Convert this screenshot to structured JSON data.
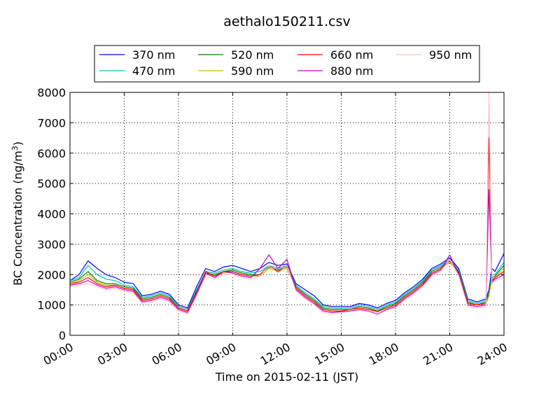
{
  "chart_data": {
    "type": "line",
    "title": "aethalo150211.csv",
    "xlabel": "Time on 2015-02-11 (JST)",
    "ylabel": "BC Concentration (ng/m",
    "ylabel_superscript": "3",
    "ylabel_suffix": ")",
    "xlim": [
      "00:00",
      "24:00"
    ],
    "ylim": [
      0,
      8000
    ],
    "grid": true,
    "legend_position": "top",
    "x_ticks": [
      "00:00",
      "03:00",
      "06:00",
      "09:00",
      "12:00",
      "15:00",
      "18:00",
      "21:00",
      "24:00"
    ],
    "y_ticks": [
      0,
      1000,
      2000,
      3000,
      4000,
      5000,
      6000,
      7000,
      8000
    ],
    "x": [
      "00:00",
      "00:30",
      "01:00",
      "01:30",
      "02:00",
      "02:30",
      "03:00",
      "03:30",
      "04:00",
      "04:30",
      "05:00",
      "05:30",
      "06:00",
      "06:30",
      "07:00",
      "07:30",
      "08:00",
      "08:30",
      "09:00",
      "09:30",
      "10:00",
      "10:30",
      "11:00",
      "11:30",
      "12:00",
      "12:30",
      "13:00",
      "13:30",
      "14:00",
      "14:30",
      "15:00",
      "15:30",
      "16:00",
      "16:30",
      "17:00",
      "17:30",
      "18:00",
      "18:30",
      "19:00",
      "19:30",
      "20:00",
      "20:30",
      "21:00",
      "21:30",
      "22:00",
      "22:30",
      "23:00",
      "23:10",
      "23:20",
      "23:30",
      "24:00"
    ],
    "series": [
      {
        "name": "370 nm",
        "color": "#0000ff",
        "values": [
          1800,
          2000,
          2450,
          2200,
          2000,
          1900,
          1750,
          1700,
          1300,
          1350,
          1450,
          1350,
          1000,
          900,
          1600,
          2200,
          2100,
          2250,
          2300,
          2200,
          2100,
          2200,
          2400,
          2300,
          2350,
          1700,
          1500,
          1300,
          1000,
          950,
          950,
          950,
          1050,
          1000,
          900,
          1050,
          1150,
          1400,
          1600,
          1850,
          2200,
          2350,
          2550,
          2200,
          1200,
          1100,
          1200,
          1500,
          2200,
          2100,
          2700
        ]
      },
      {
        "name": "470 nm",
        "color": "#00bfbf",
        "values": [
          1800,
          1900,
          2300,
          2000,
          1850,
          1800,
          1650,
          1600,
          1250,
          1300,
          1400,
          1300,
          950,
          850,
          1500,
          2100,
          2050,
          2150,
          2200,
          2100,
          2050,
          2100,
          2300,
          2200,
          2300,
          1650,
          1400,
          1200,
          950,
          900,
          900,
          900,
          1000,
          950,
          850,
          1000,
          1100,
          1350,
          1550,
          1800,
          2150,
          2300,
          2500,
          2150,
          1150,
          1050,
          1150,
          1400,
          2000,
          2000,
          2400
        ]
      },
      {
        "name": "520 nm",
        "color": "#008000",
        "values": [
          1750,
          1850,
          2100,
          1800,
          1700,
          1700,
          1600,
          1550,
          1200,
          1250,
          1350,
          1250,
          900,
          800,
          1450,
          2050,
          2000,
          2100,
          2150,
          2050,
          2000,
          2000,
          2250,
          2150,
          2250,
          1600,
          1350,
          1150,
          900,
          850,
          850,
          850,
          950,
          900,
          800,
          950,
          1050,
          1300,
          1500,
          1750,
          2100,
          2250,
          2450,
          2100,
          1100,
          1000,
          1100,
          1350,
          1900,
          1950,
          2300
        ]
      },
      {
        "name": "590 nm",
        "color": "#bfbf00",
        "values": [
          1700,
          1800,
          2000,
          1750,
          1650,
          1650,
          1550,
          1500,
          1150,
          1200,
          1300,
          1200,
          900,
          800,
          1400,
          2000,
          1950,
          2050,
          2100,
          2000,
          1950,
          1950,
          2200,
          2100,
          2200,
          1550,
          1300,
          1100,
          850,
          800,
          800,
          850,
          900,
          850,
          780,
          900,
          1000,
          1250,
          1450,
          1700,
          2050,
          2200,
          2400,
          2050,
          1050,
          1000,
          1050,
          1300,
          1850,
          1900,
          2200
        ]
      },
      {
        "name": "660 nm",
        "color": "#ff0000",
        "values": [
          1700,
          1750,
          1900,
          1700,
          1600,
          1650,
          1550,
          1500,
          1150,
          1200,
          1300,
          1200,
          900,
          800,
          1400,
          2100,
          1950,
          2100,
          2100,
          2000,
          1950,
          2000,
          2300,
          2100,
          2300,
          1550,
          1300,
          1100,
          850,
          800,
          800,
          850,
          900,
          850,
          780,
          900,
          1000,
          1250,
          1450,
          1700,
          2050,
          2200,
          2450,
          2050,
          1050,
          1000,
          1050,
          6500,
          1800,
          1900,
          2100
        ]
      },
      {
        "name": "880 nm",
        "color": "#bf00bf",
        "values": [
          1650,
          1700,
          1800,
          1650,
          1550,
          1600,
          1500,
          1450,
          1100,
          1150,
          1250,
          1150,
          850,
          750,
          1350,
          2050,
          1900,
          2100,
          2050,
          1950,
          1900,
          2200,
          2650,
          2200,
          2500,
          1500,
          1250,
          1050,
          800,
          750,
          780,
          800,
          850,
          800,
          700,
          850,
          950,
          1200,
          1400,
          1650,
          2000,
          2150,
          2650,
          2000,
          1000,
          950,
          1000,
          4800,
          1750,
          1850,
          2000
        ]
      },
      {
        "name": "950 nm",
        "color": "#ffc0cb",
        "values": [
          1600,
          1650,
          1700,
          1600,
          1500,
          1550,
          1450,
          1400,
          1050,
          1100,
          1200,
          1100,
          800,
          700,
          1300,
          1950,
          1850,
          2000,
          2000,
          1900,
          1850,
          1950,
          2300,
          2050,
          2300,
          1450,
          1200,
          1000,
          750,
          700,
          750,
          780,
          820,
          780,
          680,
          820,
          920,
          1150,
          1350,
          1600,
          1950,
          2100,
          2500,
          1950,
          950,
          900,
          950,
          8000,
          1700,
          1800,
          1900
        ]
      }
    ]
  }
}
